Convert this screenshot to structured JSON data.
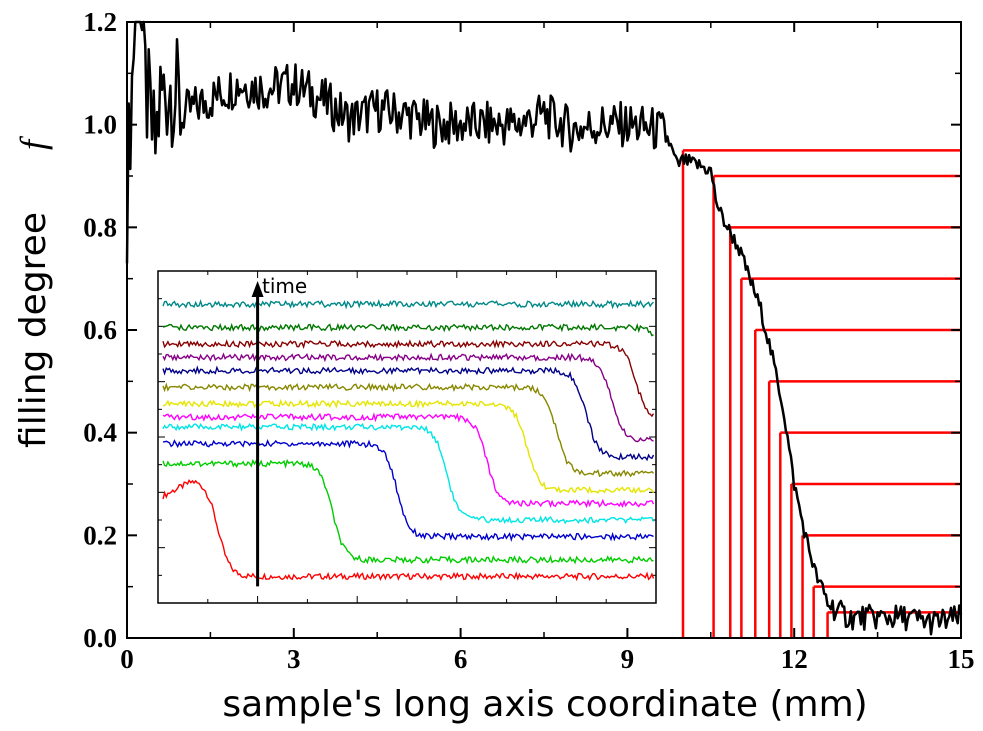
{
  "chart_data": [
    {
      "type": "line",
      "title": "",
      "xlabel": "sample's long axis coordinate (mm)",
      "ylabel": "filling degree",
      "ylabel_symbol": "f",
      "xlim": [
        0,
        15
      ],
      "ylim": [
        0,
        1.2
      ],
      "x_ticks": [
        0,
        3,
        6,
        9,
        12,
        15
      ],
      "y_ticks": [
        0.0,
        0.2,
        0.4,
        0.6,
        0.8,
        1.0,
        1.2
      ],
      "x_tick_labels": [
        "0",
        "3",
        "6",
        "9",
        "12",
        "15"
      ],
      "y_tick_labels": [
        "0.0",
        "0.2",
        "0.4",
        "0.6",
        "0.8",
        "1.0",
        "1.2"
      ],
      "grid": false,
      "series": [
        {
          "color": "#000000",
          "x": [
            0.0,
            0.05,
            0.1,
            0.15,
            0.2,
            0.3,
            0.4,
            0.5,
            0.6,
            0.8,
            1.0,
            1.5,
            2.0,
            2.5,
            3.0,
            3.5,
            4.0,
            4.5,
            5.0,
            5.5,
            6.0,
            6.5,
            7.0,
            7.5,
            8.0,
            8.5,
            9.0,
            9.5,
            9.7,
            9.9,
            10.0,
            10.3,
            10.5,
            10.6,
            10.7,
            10.9,
            11.0,
            11.2,
            11.4,
            11.6,
            11.8,
            12.0,
            12.2,
            12.4,
            12.6,
            12.8,
            13.0,
            13.5,
            14.0,
            14.5,
            15.0
          ],
          "y": [
            0.85,
            1.0,
            1.1,
            1.25,
            1.35,
            1.1,
            1.02,
            0.95,
            1.05,
            1.08,
            1.02,
            1.05,
            1.08,
            1.07,
            1.08,
            1.05,
            1.01,
            1.03,
            1.02,
            1.0,
            1.0,
            1.0,
            1.0,
            1.02,
            0.99,
            1.0,
            1.0,
            0.99,
            0.98,
            0.92,
            0.93,
            0.92,
            0.91,
            0.85,
            0.82,
            0.78,
            0.76,
            0.7,
            0.64,
            0.55,
            0.45,
            0.3,
            0.2,
            0.12,
            0.07,
            0.05,
            0.04,
            0.04,
            0.04,
            0.03,
            0.04
          ]
        }
      ],
      "threshold_lines": {
        "color": "#ff0000",
        "levels": [
          0.95,
          0.9,
          0.8,
          0.7,
          0.6,
          0.5,
          0.4,
          0.3,
          0.2,
          0.1,
          0.05
        ],
        "x_at_level": [
          10.0,
          10.55,
          10.85,
          11.05,
          11.3,
          11.55,
          11.75,
          11.95,
          12.15,
          12.35,
          12.6
        ],
        "x_end": 15
      }
    },
    {
      "type": "line",
      "title": "",
      "annotation": "time",
      "xlim": [
        0,
        1
      ],
      "ylim": [
        0,
        1
      ],
      "arrow": {
        "x": 0.2,
        "y_start": 0.05,
        "y_end": 0.97
      },
      "series": [
        {
          "color": "#ff0000",
          "front_x": 0.12,
          "high": 0.37,
          "low": 0.08
        },
        {
          "color": "#00cc00",
          "front_x": 0.35,
          "high": 0.42,
          "low": 0.13
        },
        {
          "color": "#0000cc",
          "front_x": 0.48,
          "high": 0.48,
          "low": 0.2
        },
        {
          "color": "#00e5e5",
          "front_x": 0.58,
          "high": 0.53,
          "low": 0.25
        },
        {
          "color": "#ff00ff",
          "front_x": 0.66,
          "high": 0.56,
          "low": 0.3
        },
        {
          "color": "#e5e500",
          "front_x": 0.74,
          "high": 0.6,
          "low": 0.34
        },
        {
          "color": "#888800",
          "front_x": 0.8,
          "high": 0.65,
          "low": 0.39
        },
        {
          "color": "#000088",
          "front_x": 0.86,
          "high": 0.7,
          "low": 0.44
        },
        {
          "color": "#880088",
          "front_x": 0.91,
          "high": 0.74,
          "low": 0.49
        },
        {
          "color": "#880000",
          "front_x": 0.96,
          "high": 0.78,
          "low": 0.55
        },
        {
          "color": "#007700",
          "front_x": 1.02,
          "high": 0.83,
          "low": 0.6
        },
        {
          "color": "#008888",
          "front_x": 1.1,
          "high": 0.9,
          "low": 0.9
        }
      ]
    }
  ]
}
